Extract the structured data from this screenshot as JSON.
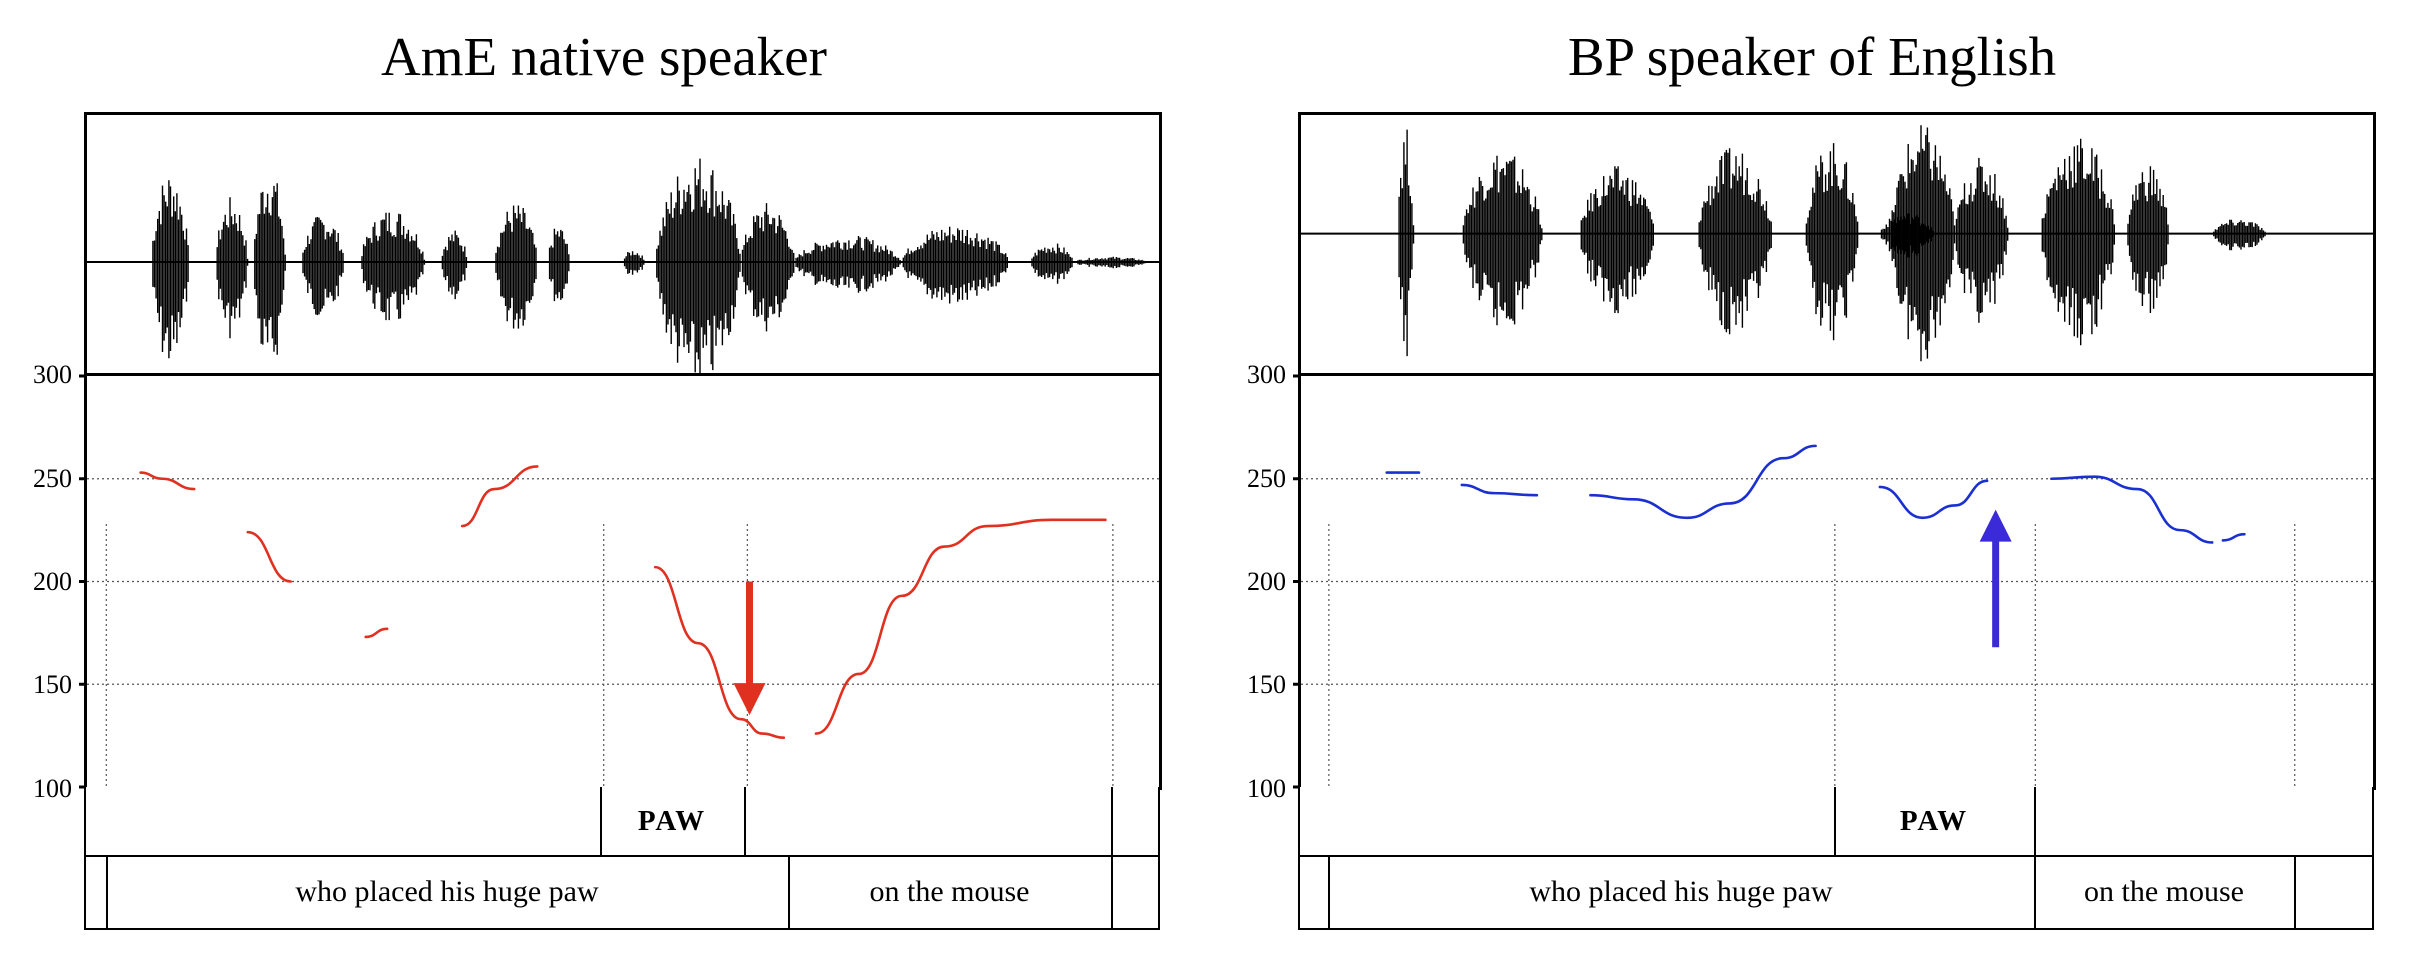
{
  "chart_data": [
    {
      "type": "line",
      "title": "AmE native speaker",
      "ylim": [
        100,
        300
      ],
      "yticks": [
        100,
        150,
        200,
        250,
        300
      ],
      "grid": true,
      "line_color": "#e03020",
      "arrow": {
        "direction": "down",
        "color": "#e03020"
      },
      "series": [
        {
          "x": [
            0.05,
            0.07,
            0.1
          ],
          "values": [
            253,
            250,
            245
          ]
        },
        {
          "x": [
            0.15,
            0.19
          ],
          "values": [
            224,
            200
          ]
        },
        {
          "x": [
            0.26,
            0.28
          ],
          "values": [
            173,
            177
          ]
        },
        {
          "x": [
            0.35,
            0.38,
            0.42
          ],
          "values": [
            227,
            245,
            256
          ]
        },
        {
          "x": [
            0.53,
            0.57,
            0.61,
            0.63,
            0.65
          ],
          "values": [
            207,
            170,
            133,
            126,
            124
          ]
        },
        {
          "x": [
            0.68,
            0.72,
            0.76,
            0.8,
            0.84,
            0.9,
            0.95
          ],
          "values": [
            126,
            155,
            193,
            217,
            227,
            230,
            230
          ]
        }
      ],
      "tiers": {
        "word": [
          {
            "label": "PAW"
          }
        ],
        "phrase": [
          {
            "label": "who placed his huge paw"
          },
          {
            "label": "on the mouse"
          }
        ]
      }
    },
    {
      "type": "line",
      "title": "BP speaker of English",
      "ylim": [
        100,
        300
      ],
      "yticks": [
        100,
        150,
        200,
        250,
        300
      ],
      "grid": true,
      "line_color": "#1a30d0",
      "arrow": {
        "direction": "up",
        "color": "#3a2ad8"
      },
      "series": [
        {
          "x": [
            0.08,
            0.11
          ],
          "values": [
            253,
            253
          ]
        },
        {
          "x": [
            0.15,
            0.18,
            0.22
          ],
          "values": [
            247,
            243,
            242
          ]
        },
        {
          "x": [
            0.27,
            0.31,
            0.36,
            0.4,
            0.45,
            0.48
          ],
          "values": [
            242,
            240,
            231,
            238,
            260,
            266
          ]
        },
        {
          "x": [
            0.54,
            0.58,
            0.61,
            0.64
          ],
          "values": [
            246,
            231,
            237,
            249
          ]
        },
        {
          "x": [
            0.7,
            0.74,
            0.78,
            0.82,
            0.85
          ],
          "values": [
            250,
            251,
            245,
            225,
            219
          ]
        },
        {
          "x": [
            0.86,
            0.88
          ],
          "values": [
            220,
            223
          ]
        }
      ],
      "tiers": {
        "word": [
          {
            "label": "PAW"
          }
        ],
        "phrase": [
          {
            "label": "who placed his huge paw"
          },
          {
            "label": "on the mouse"
          }
        ]
      }
    }
  ]
}
